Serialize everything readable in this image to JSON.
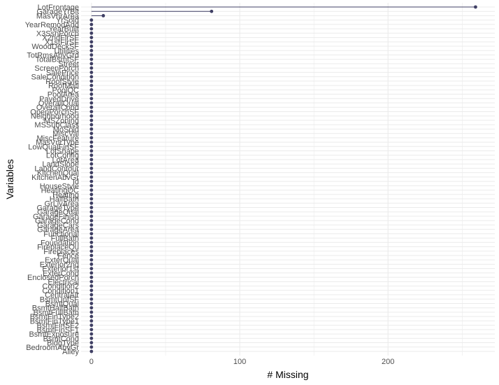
{
  "chart_data": {
    "type": "lollipop",
    "orientation": "horizontal",
    "xlabel": "# Missing",
    "ylabel": "Variables",
    "xlim": [
      -7,
      272
    ],
    "xticks": [
      0,
      100,
      200
    ],
    "grid": true,
    "legend": "none",
    "colors": {
      "point": "#3f3f64",
      "stem": "#3f3f64",
      "grid": "#ebebeb"
    },
    "categories": [
      "LotFrontage",
      "GarageYrBlt",
      "MasVnrArea",
      "YrSold",
      "YearRemodAdd",
      "YearBuilt",
      "X3SsnPorch",
      "X2ndFlrSF",
      "X1stFlrSF",
      "WoodDeckSF",
      "Utilities",
      "TotRmsAbvGrd",
      "TotalBsmtSF",
      "Street",
      "ScreenPorch",
      "SalePrice",
      "SaleCondition",
      "RoofStyle",
      "RoofMatl",
      "PoolQC",
      "PoolArea",
      "PavedDrive",
      "OverallQual",
      "OverallCond",
      "OpenPorchSF",
      "Neighborhood",
      "MSZoning",
      "MSSubClass",
      "MoSold",
      "MiscVal",
      "MiscFeature",
      "MasVnrType",
      "LowQualFinSF",
      "LotShape",
      "LotConfig",
      "LotArea",
      "LandSlope",
      "LandContour",
      "KitchenQual",
      "KitchenAbvGr",
      "Id",
      "HouseStyle",
      "HeatingQC",
      "Heating",
      "HalfBath",
      "GrLivArea",
      "GarageType",
      "GarageQual",
      "GarageFinish",
      "GarageCond",
      "GarageCars",
      "GarageArea",
      "Functional",
      "FullBath",
      "Foundation",
      "FireplaceQu",
      "Fireplaces",
      "Fence",
      "ExterQual",
      "Exterior2nd",
      "Exterior1st",
      "ExterCond",
      "EnclosedPorch",
      "Electrical",
      "Condition2",
      "Condition1",
      "CentralAir",
      "BsmtUnfSF",
      "BsmtQual",
      "BsmtHalfBath",
      "BsmtFullBath",
      "BsmtFinType2",
      "BsmtFinType1",
      "BsmtFinSF2",
      "BsmtFinSF1",
      "BsmtExposure",
      "BsmtCond",
      "BldgType",
      "BedroomAbvGr",
      "Alley"
    ],
    "values": [
      259,
      81,
      8,
      0,
      0,
      0,
      0,
      0,
      0,
      0,
      0,
      0,
      0,
      0,
      0,
      0,
      0,
      0,
      0,
      0,
      0,
      0,
      0,
      0,
      0,
      0,
      0,
      0,
      0,
      0,
      0,
      0,
      0,
      0,
      0,
      0,
      0,
      0,
      0,
      0,
      0,
      0,
      0,
      0,
      0,
      0,
      0,
      0,
      0,
      0,
      0,
      0,
      0,
      0,
      0,
      0,
      0,
      0,
      0,
      0,
      0,
      0,
      0,
      0,
      0,
      0,
      0,
      0,
      0,
      0,
      0,
      0,
      0,
      0,
      0,
      0,
      0,
      0,
      0,
      0
    ]
  }
}
